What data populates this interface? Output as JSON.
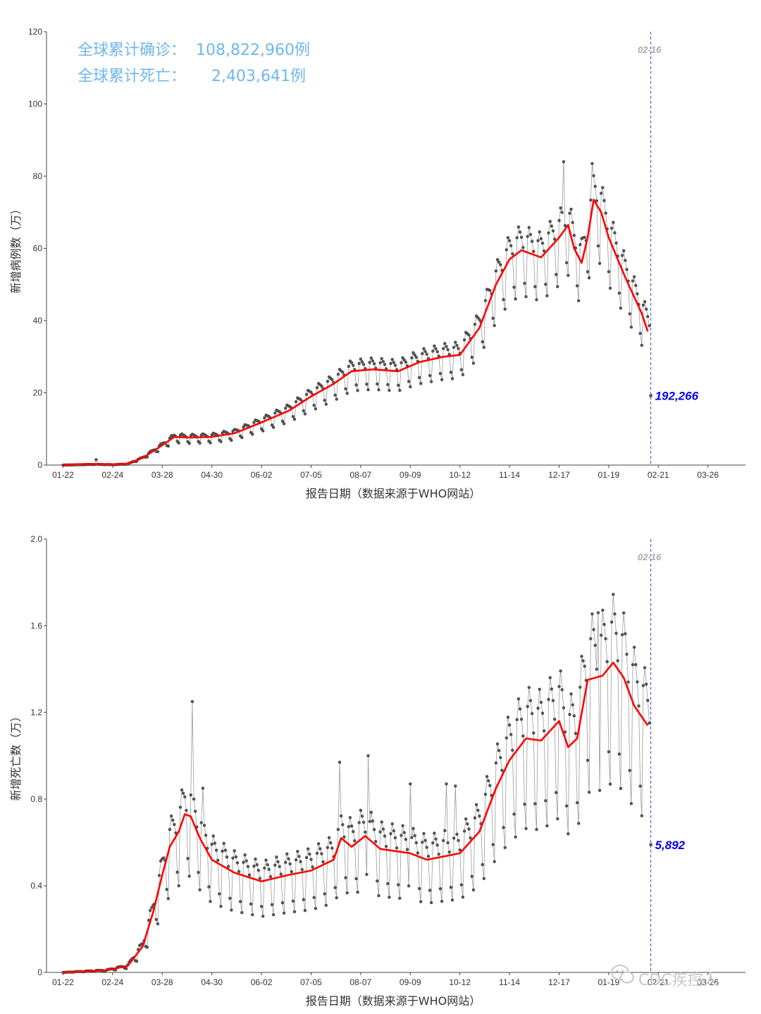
{
  "colors": {
    "summary": "#6fb7ec",
    "trend": "#ff0000",
    "raw_line": "#9a9a9a",
    "raw_point": "#555555",
    "vline": "#3344cc",
    "vline_label": "#aaaaaa",
    "last_value": "#0000ee",
    "watermark": "#c8c8c8"
  },
  "summary": {
    "cases_label": "全球累计确诊：",
    "cases_value": "108,822,960例",
    "deaths_label": "全球累计死亡：",
    "deaths_value": "2,403,641例"
  },
  "watermark": {
    "text": "CDC疾控人",
    "icon": "wechat-icon"
  },
  "chart_data": [
    {
      "type": "scatter",
      "name": "new-cases-chart",
      "xlabel": "报告日期（数据来源于WHO网站）",
      "ylabel": "新增病例数（万）",
      "ylim": [
        0,
        120
      ],
      "yticks": [
        0,
        20,
        40,
        60,
        80,
        100,
        120
      ],
      "x_range": [
        "2020-01-11",
        "2021-04-20"
      ],
      "xticks": [
        {
          "date": "2020-01-22",
          "label": "01-22"
        },
        {
          "date": "2020-02-24",
          "label": "02-24"
        },
        {
          "date": "2020-03-28",
          "label": "03-28"
        },
        {
          "date": "2020-04-30",
          "label": "04-30"
        },
        {
          "date": "2020-06-02",
          "label": "06-02"
        },
        {
          "date": "2020-07-05",
          "label": "07-05"
        },
        {
          "date": "2020-08-07",
          "label": "08-07"
        },
        {
          "date": "2020-09-09",
          "label": "09-09"
        },
        {
          "date": "2020-10-12",
          "label": "10-12"
        },
        {
          "date": "2020-11-14",
          "label": "11-14"
        },
        {
          "date": "2020-12-17",
          "label": "12-17"
        },
        {
          "date": "2021-01-19",
          "label": "01-19"
        },
        {
          "date": "2021-02-21",
          "label": "02-21"
        },
        {
          "date": "2021-03-26",
          "label": "03-26"
        }
      ],
      "reference_line": {
        "date": "2021-02-16",
        "label": "02-16"
      },
      "last_point": {
        "date": "2021-02-16",
        "value": 19.2266,
        "label": "192,266"
      },
      "trend_series": {
        "name": "7-day average",
        "points": [
          [
            "2020-01-22",
            0.0
          ],
          [
            "2020-02-05",
            0.3
          ],
          [
            "2020-02-24",
            0.2
          ],
          [
            "2020-03-05",
            0.4
          ],
          [
            "2020-03-15",
            2.0
          ],
          [
            "2020-03-28",
            5.5
          ],
          [
            "2020-04-05",
            7.8
          ],
          [
            "2020-04-15",
            7.6
          ],
          [
            "2020-04-30",
            7.8
          ],
          [
            "2020-05-15",
            8.8
          ],
          [
            "2020-06-02",
            11.8
          ],
          [
            "2020-06-20",
            15.0
          ],
          [
            "2020-07-05",
            19.0
          ],
          [
            "2020-07-20",
            22.5
          ],
          [
            "2020-08-01",
            26.0
          ],
          [
            "2020-08-15",
            26.5
          ],
          [
            "2020-09-01",
            26.0
          ],
          [
            "2020-09-15",
            28.5
          ],
          [
            "2020-10-01",
            30.0
          ],
          [
            "2020-10-12",
            30.5
          ],
          [
            "2020-10-25",
            38.0
          ],
          [
            "2020-11-05",
            50.0
          ],
          [
            "2020-11-14",
            57.0
          ],
          [
            "2020-11-22",
            59.5
          ],
          [
            "2020-12-05",
            57.5
          ],
          [
            "2020-12-17",
            63.0
          ],
          [
            "2020-12-23",
            66.5
          ],
          [
            "2020-12-27",
            60.0
          ],
          [
            "2021-01-01",
            56.0
          ],
          [
            "2021-01-05",
            63.0
          ],
          [
            "2021-01-09",
            73.5
          ],
          [
            "2021-01-14",
            70.0
          ],
          [
            "2021-01-19",
            63.0
          ],
          [
            "2021-01-30",
            52.0
          ],
          [
            "2021-02-10",
            42.0
          ],
          [
            "2021-02-14",
            37.0
          ]
        ]
      },
      "raw_series": {
        "name": "daily new cases",
        "anchors": [
          [
            "2020-01-22",
            0.0
          ],
          [
            "2020-02-13",
            0.2
          ],
          [
            "2020-02-24",
            0.1
          ],
          [
            "2020-03-05",
            0.3
          ],
          [
            "2020-03-15",
            2.0
          ],
          [
            "2020-03-28",
            5.5
          ],
          [
            "2020-04-05",
            7.8
          ],
          [
            "2020-04-15",
            7.6
          ],
          [
            "2020-04-30",
            7.8
          ],
          [
            "2020-05-15",
            8.8
          ],
          [
            "2020-06-02",
            11.8
          ],
          [
            "2020-06-20",
            15.0
          ],
          [
            "2020-07-05",
            19.0
          ],
          [
            "2020-07-20",
            22.5
          ],
          [
            "2020-08-01",
            26.0
          ],
          [
            "2020-08-15",
            26.5
          ],
          [
            "2020-09-01",
            26.0
          ],
          [
            "2020-09-15",
            28.5
          ],
          [
            "2020-10-01",
            30.0
          ],
          [
            "2020-10-12",
            30.5
          ],
          [
            "2020-10-25",
            38.0
          ],
          [
            "2020-11-05",
            50.0
          ],
          [
            "2020-11-14",
            57.0
          ],
          [
            "2020-11-22",
            59.5
          ],
          [
            "2020-12-05",
            57.5
          ],
          [
            "2020-12-17",
            63.0
          ],
          [
            "2020-12-23",
            66.5
          ],
          [
            "2020-12-27",
            60.0
          ],
          [
            "2021-01-01",
            56.0
          ],
          [
            "2021-01-05",
            63.0
          ],
          [
            "2021-01-09",
            73.5
          ],
          [
            "2021-01-14",
            70.0
          ],
          [
            "2021-01-19",
            63.0
          ],
          [
            "2021-01-30",
            52.0
          ],
          [
            "2021-02-10",
            42.0
          ],
          [
            "2021-02-15",
            38.0
          ]
        ],
        "weekly_amplitude": 0.12,
        "peaks": [
          [
            "2020-02-13",
            1.5
          ],
          [
            "2020-12-20",
            84.0
          ],
          [
            "2021-01-08",
            83.5
          ]
        ]
      }
    },
    {
      "type": "scatter",
      "name": "new-deaths-chart",
      "xlabel": "报告日期（数据来源于WHO网站）",
      "ylabel": "新增死亡数（万）",
      "ylim": [
        0,
        2.0
      ],
      "yticks": [
        0,
        0.4,
        0.8,
        1.2,
        1.6,
        2.0
      ],
      "ytick_labels": [
        "0",
        "0.4",
        "0.8",
        "1.2",
        "1.6",
        "2.0"
      ],
      "x_range": [
        "2020-01-11",
        "2021-04-20"
      ],
      "xticks": [
        {
          "date": "2020-01-22",
          "label": "01-22"
        },
        {
          "date": "2020-02-24",
          "label": "02-24"
        },
        {
          "date": "2020-03-28",
          "label": "03-28"
        },
        {
          "date": "2020-04-30",
          "label": "04-30"
        },
        {
          "date": "2020-06-02",
          "label": "06-02"
        },
        {
          "date": "2020-07-05",
          "label": "07-05"
        },
        {
          "date": "2020-08-07",
          "label": "08-07"
        },
        {
          "date": "2020-09-09",
          "label": "09-09"
        },
        {
          "date": "2020-10-12",
          "label": "10-12"
        },
        {
          "date": "2020-11-14",
          "label": "11-14"
        },
        {
          "date": "2020-12-17",
          "label": "12-17"
        },
        {
          "date": "2021-01-19",
          "label": "01-19"
        },
        {
          "date": "2021-02-21",
          "label": "02-21"
        },
        {
          "date": "2021-03-26",
          "label": "03-26"
        }
      ],
      "reference_line": {
        "date": "2021-02-16",
        "label": "02-16"
      },
      "last_point": {
        "date": "2021-02-16",
        "value": 0.5892,
        "label": "5,892"
      },
      "trend_series": {
        "name": "7-day average",
        "points": [
          [
            "2020-01-22",
            0.0
          ],
          [
            "2020-02-20",
            0.01
          ],
          [
            "2020-03-05",
            0.03
          ],
          [
            "2020-03-15",
            0.12
          ],
          [
            "2020-03-22",
            0.28
          ],
          [
            "2020-03-28",
            0.45
          ],
          [
            "2020-04-02",
            0.58
          ],
          [
            "2020-04-08",
            0.65
          ],
          [
            "2020-04-12",
            0.73
          ],
          [
            "2020-04-16",
            0.72
          ],
          [
            "2020-04-22",
            0.62
          ],
          [
            "2020-04-30",
            0.52
          ],
          [
            "2020-05-15",
            0.46
          ],
          [
            "2020-06-02",
            0.42
          ],
          [
            "2020-06-20",
            0.45
          ],
          [
            "2020-07-05",
            0.47
          ],
          [
            "2020-07-20",
            0.52
          ],
          [
            "2020-07-25",
            0.62
          ],
          [
            "2020-08-01",
            0.58
          ],
          [
            "2020-08-10",
            0.63
          ],
          [
            "2020-08-20",
            0.57
          ],
          [
            "2020-09-09",
            0.55
          ],
          [
            "2020-09-20",
            0.52
          ],
          [
            "2020-10-12",
            0.55
          ],
          [
            "2020-10-25",
            0.65
          ],
          [
            "2020-11-05",
            0.85
          ],
          [
            "2020-11-14",
            0.98
          ],
          [
            "2020-11-25",
            1.08
          ],
          [
            "2020-12-05",
            1.07
          ],
          [
            "2020-12-17",
            1.16
          ],
          [
            "2020-12-23",
            1.04
          ],
          [
            "2020-12-29",
            1.08
          ],
          [
            "2021-01-05",
            1.35
          ],
          [
            "2021-01-15",
            1.37
          ],
          [
            "2021-01-22",
            1.43
          ],
          [
            "2021-01-29",
            1.36
          ],
          [
            "2021-02-05",
            1.23
          ],
          [
            "2021-02-14",
            1.14
          ]
        ]
      },
      "raw_series": {
        "name": "daily new deaths",
        "anchors": [
          [
            "2020-01-22",
            0.0
          ],
          [
            "2020-02-20",
            0.01
          ],
          [
            "2020-03-05",
            0.03
          ],
          [
            "2020-03-15",
            0.12
          ],
          [
            "2020-03-22",
            0.28
          ],
          [
            "2020-03-28",
            0.45
          ],
          [
            "2020-04-02",
            0.58
          ],
          [
            "2020-04-08",
            0.65
          ],
          [
            "2020-04-12",
            0.73
          ],
          [
            "2020-04-16",
            0.72
          ],
          [
            "2020-04-22",
            0.62
          ],
          [
            "2020-04-30",
            0.52
          ],
          [
            "2020-05-15",
            0.46
          ],
          [
            "2020-06-02",
            0.42
          ],
          [
            "2020-06-20",
            0.45
          ],
          [
            "2020-07-05",
            0.47
          ],
          [
            "2020-07-20",
            0.52
          ],
          [
            "2020-07-25",
            0.62
          ],
          [
            "2020-08-01",
            0.58
          ],
          [
            "2020-08-10",
            0.63
          ],
          [
            "2020-08-20",
            0.57
          ],
          [
            "2020-09-09",
            0.55
          ],
          [
            "2020-09-20",
            0.52
          ],
          [
            "2020-10-12",
            0.55
          ],
          [
            "2020-10-25",
            0.65
          ],
          [
            "2020-11-05",
            0.85
          ],
          [
            "2020-11-14",
            0.98
          ],
          [
            "2020-11-25",
            1.08
          ],
          [
            "2020-12-05",
            1.07
          ],
          [
            "2020-12-17",
            1.16
          ],
          [
            "2020-12-23",
            1.04
          ],
          [
            "2020-12-29",
            1.08
          ],
          [
            "2021-01-05",
            1.35
          ],
          [
            "2021-01-15",
            1.37
          ],
          [
            "2021-01-22",
            1.43
          ],
          [
            "2021-01-29",
            1.36
          ],
          [
            "2021-02-05",
            1.23
          ],
          [
            "2021-02-15",
            1.12
          ]
        ],
        "weekly_amplitude": 0.22,
        "peaks": [
          [
            "2020-04-17",
            1.25
          ],
          [
            "2020-04-24",
            0.85
          ],
          [
            "2020-07-24",
            0.97
          ],
          [
            "2020-08-12",
            1.0
          ],
          [
            "2020-09-09",
            0.87
          ],
          [
            "2020-10-03",
            0.87
          ],
          [
            "2020-10-09",
            0.86
          ],
          [
            "2021-01-12",
            1.66
          ]
        ]
      }
    }
  ]
}
